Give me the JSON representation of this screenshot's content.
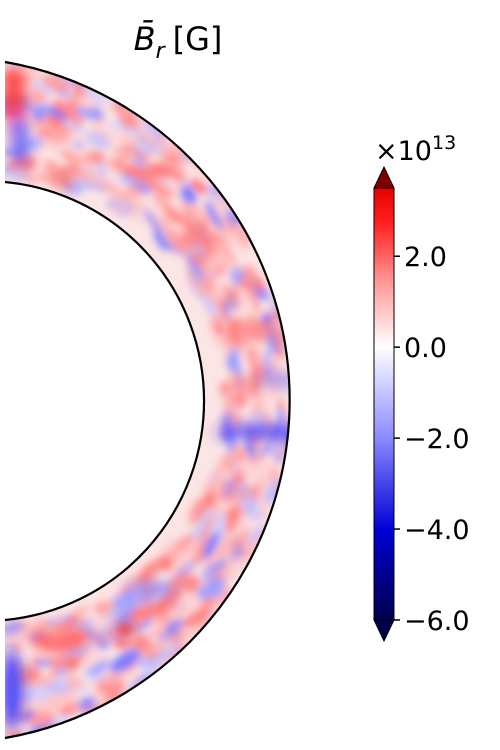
{
  "chart_data": {
    "type": "heatmap",
    "title": "B̄",
    "title_subscript": "r",
    "title_unit": "[G]",
    "colorbar": {
      "multiplier_base": "×10",
      "multiplier_exponent": "13",
      "ticks": [
        {
          "value": 2.0,
          "label": "2.0"
        },
        {
          "value": 0.0,
          "label": "0.0"
        },
        {
          "value": -2.0,
          "label": "−2.0"
        },
        {
          "value": -4.0,
          "label": "−4.0"
        },
        {
          "value": -6.0,
          "label": "−6.0"
        }
      ],
      "vmin": -6.0,
      "vmax": 3.5,
      "colormap": "seismic",
      "colors": {
        "min": "#00004c",
        "mid": "#ffffff",
        "max": "#800000",
        "over": "#7f0000",
        "under": "#00004d"
      }
    },
    "domain": {
      "shape": "half-annulus",
      "inner_radius_fraction": 0.65
    }
  }
}
